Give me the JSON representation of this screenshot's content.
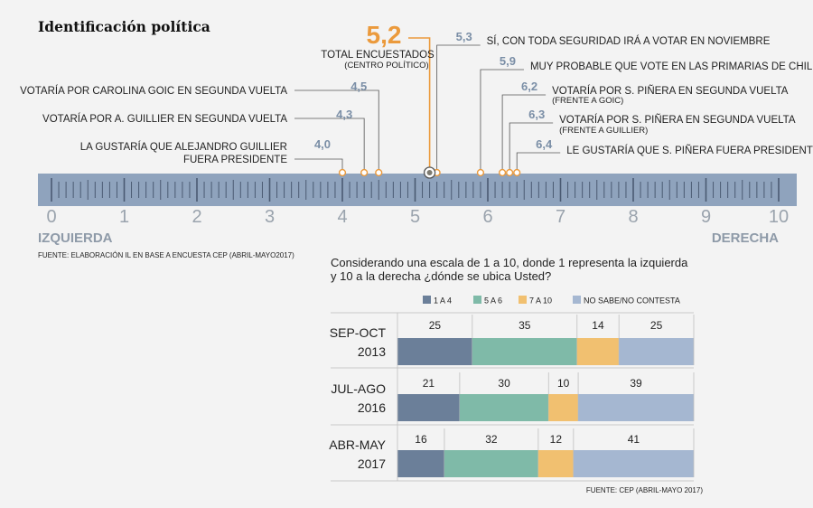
{
  "title": "Identificación política",
  "source_scale": "FUENTE: ELABORACIÓN IL EN BASE A ENCUESTA CEP (ABRIL-MAYO2017)",
  "source_bars": "FUENTE: CEP (ABRIL-MAYO 2017)",
  "colors": {
    "accent": "#eb9a3c",
    "value_text": "#7a8ea6",
    "ruler": "#8fa3bd",
    "c1a4": "#6b7f99",
    "c5a6": "#7fbaa8",
    "c7a10": "#f1c070",
    "cns": "#a5b7d1"
  },
  "chart_data": [
    {
      "type": "scatter",
      "title": "Identificación política",
      "xlim": [
        0,
        10
      ],
      "ticks": [
        "0",
        "1",
        "2",
        "3",
        "4",
        "5",
        "6",
        "7",
        "8",
        "9",
        "10"
      ],
      "left_label": "IZQUIERDA",
      "right_label": "DERECHA",
      "highlight": {
        "value": 5.2,
        "display": "5,2",
        "label": "TOTAL ENCUESTADOS",
        "sublabel": "(CENTRO POLÍTICO)"
      },
      "points": [
        {
          "value": 4.0,
          "display": "4,0",
          "label": "LA GUSTARÍA QUE ALEJANDRO GUILLIER",
          "label2": "FUERA PRESIDENTE",
          "sublabel": "",
          "side": "left"
        },
        {
          "value": 4.3,
          "display": "4,3",
          "label": "VOTARÍA POR A. GUILLIER EN SEGUNDA VUELTA",
          "label2": "",
          "sublabel": "",
          "side": "left"
        },
        {
          "value": 4.5,
          "display": "4,5",
          "label": "VOTARÍA POR CAROLINA GOIC EN SEGUNDA VUELTA",
          "label2": "",
          "sublabel": "",
          "side": "left"
        },
        {
          "value": 5.3,
          "display": "5,3",
          "label": "SÍ, CON TODA SEGURIDAD IRÁ A VOTAR EN NOVIEMBRE",
          "label2": "",
          "sublabel": "",
          "side": "right"
        },
        {
          "value": 5.9,
          "display": "5,9",
          "label": "MUY PROBABLE QUE VOTE EN LAS PRIMARIAS DE CHILE VAMOS",
          "label2": "",
          "sublabel": "",
          "side": "right"
        },
        {
          "value": 6.2,
          "display": "6,2",
          "label": "VOTARÍA POR S. PIÑERA EN SEGUNDA VUELTA",
          "label2": "",
          "sublabel": "(FRENTE A GOIC)",
          "side": "right"
        },
        {
          "value": 6.3,
          "display": "6,3",
          "label": "VOTARÍA POR S. PIÑERA EN SEGUNDA VUELTA",
          "label2": "",
          "sublabel": "(FRENTE A GUILLIER)",
          "side": "right"
        },
        {
          "value": 6.4,
          "display": "6,4",
          "label": "LE GUSTARÍA QUE S. PIÑERA FUERA PRESIDENTE",
          "label2": "",
          "sublabel": "",
          "side": "right"
        }
      ]
    },
    {
      "type": "bar",
      "stacked": true,
      "horizontal": true,
      "title": "Considerando una escala de 1 a 10, donde 1 representa la izquierda y 10 a la derecha ¿dónde se ubica Usted?",
      "title_lines": [
        "Considerando una escala de 1 a 10, donde 1 representa la izquierda",
        "y 10 a la derecha ¿dónde se ubica Usted?"
      ],
      "categories": [
        {
          "line1": "SEP-OCT",
          "line2": "2013"
        },
        {
          "line1": "JUL-AGO",
          "line2": "2016"
        },
        {
          "line1": "ABR-MAY",
          "line2": "2017"
        }
      ],
      "series": [
        {
          "name": "1 A 4",
          "values": [
            25,
            21,
            16
          ]
        },
        {
          "name": "5 A 6",
          "values": [
            35,
            30,
            32
          ]
        },
        {
          "name": "7 A 10",
          "values": [
            14,
            10,
            12
          ]
        },
        {
          "name": "NO SABE/NO CONTESTA",
          "values": [
            25,
            39,
            41
          ]
        }
      ],
      "legend": "top"
    }
  ]
}
